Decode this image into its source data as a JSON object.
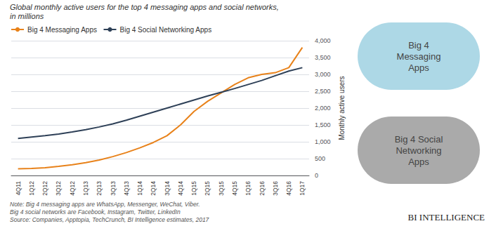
{
  "chart_data": {
    "type": "line",
    "title": "Global monthly active users for the top 4 messaging apps and social networks,",
    "subtitle": "in millions",
    "ylabel": "Monthly active users",
    "categories": [
      "4Q11",
      "1Q12",
      "2Q12",
      "3Q12",
      "4Q12",
      "1Q13",
      "2Q13",
      "3Q13",
      "4Q13",
      "1Q14",
      "2Q14",
      "3Q14",
      "4Q14",
      "1Q15",
      "2Q15",
      "3Q15",
      "4Q15",
      "1Q16",
      "2Q16",
      "3Q16",
      "4Q16",
      "1Q17"
    ],
    "series": [
      {
        "name": "Big 4 Messaging Apps",
        "color": "#E8821A",
        "values": [
          200,
          210,
          230,
          270,
          320,
          380,
          460,
          560,
          680,
          820,
          980,
          1180,
          1500,
          1900,
          2200,
          2450,
          2700,
          2900,
          3000,
          3050,
          3200,
          3800
        ]
      },
      {
        "name": "Big 4 Social Networking Apps",
        "color": "#2E4057",
        "values": [
          1100,
          1140,
          1180,
          1230,
          1290,
          1360,
          1440,
          1530,
          1640,
          1760,
          1880,
          2000,
          2120,
          2240,
          2360,
          2470,
          2580,
          2700,
          2820,
          2960,
          3100,
          3200
        ]
      }
    ],
    "ylim": [
      0,
      4000
    ],
    "yticks": [
      0,
      500,
      {
        "value": 1000,
        "label": "1,000"
      },
      {
        "value": 1500,
        "label": "1,500"
      },
      {
        "value": 2000,
        "label": "2,000"
      },
      {
        "value": 2500,
        "label": "2,500"
      },
      {
        "value": 3000,
        "label": "3,000"
      },
      {
        "value": 3500,
        "label": "3,500"
      },
      {
        "value": 4000,
        "label": "4,000"
      }
    ],
    "grid": true,
    "legend": "upper left",
    "annotations": [
      {
        "text": "Note: Big 4 messaging apps are WhatsApp, Messenger, WeChat, Viber."
      },
      {
        "text": "Big 4 social networks are Facebook, Instagram, Twitter, LinkedIn"
      },
      {
        "text": "Source: Companies, Apptopia, TechCrunch, BI Intelligence estimates, 2017"
      },
      {
        "text": "BI INTELLIGENCE"
      },
      {
        "text": "Big 4\nMessaging\nApps",
        "color": "#ADD8E6"
      },
      {
        "text": "Big 4 Social\nNetworking\nApps",
        "color": "#AAAAAA"
      }
    ]
  }
}
